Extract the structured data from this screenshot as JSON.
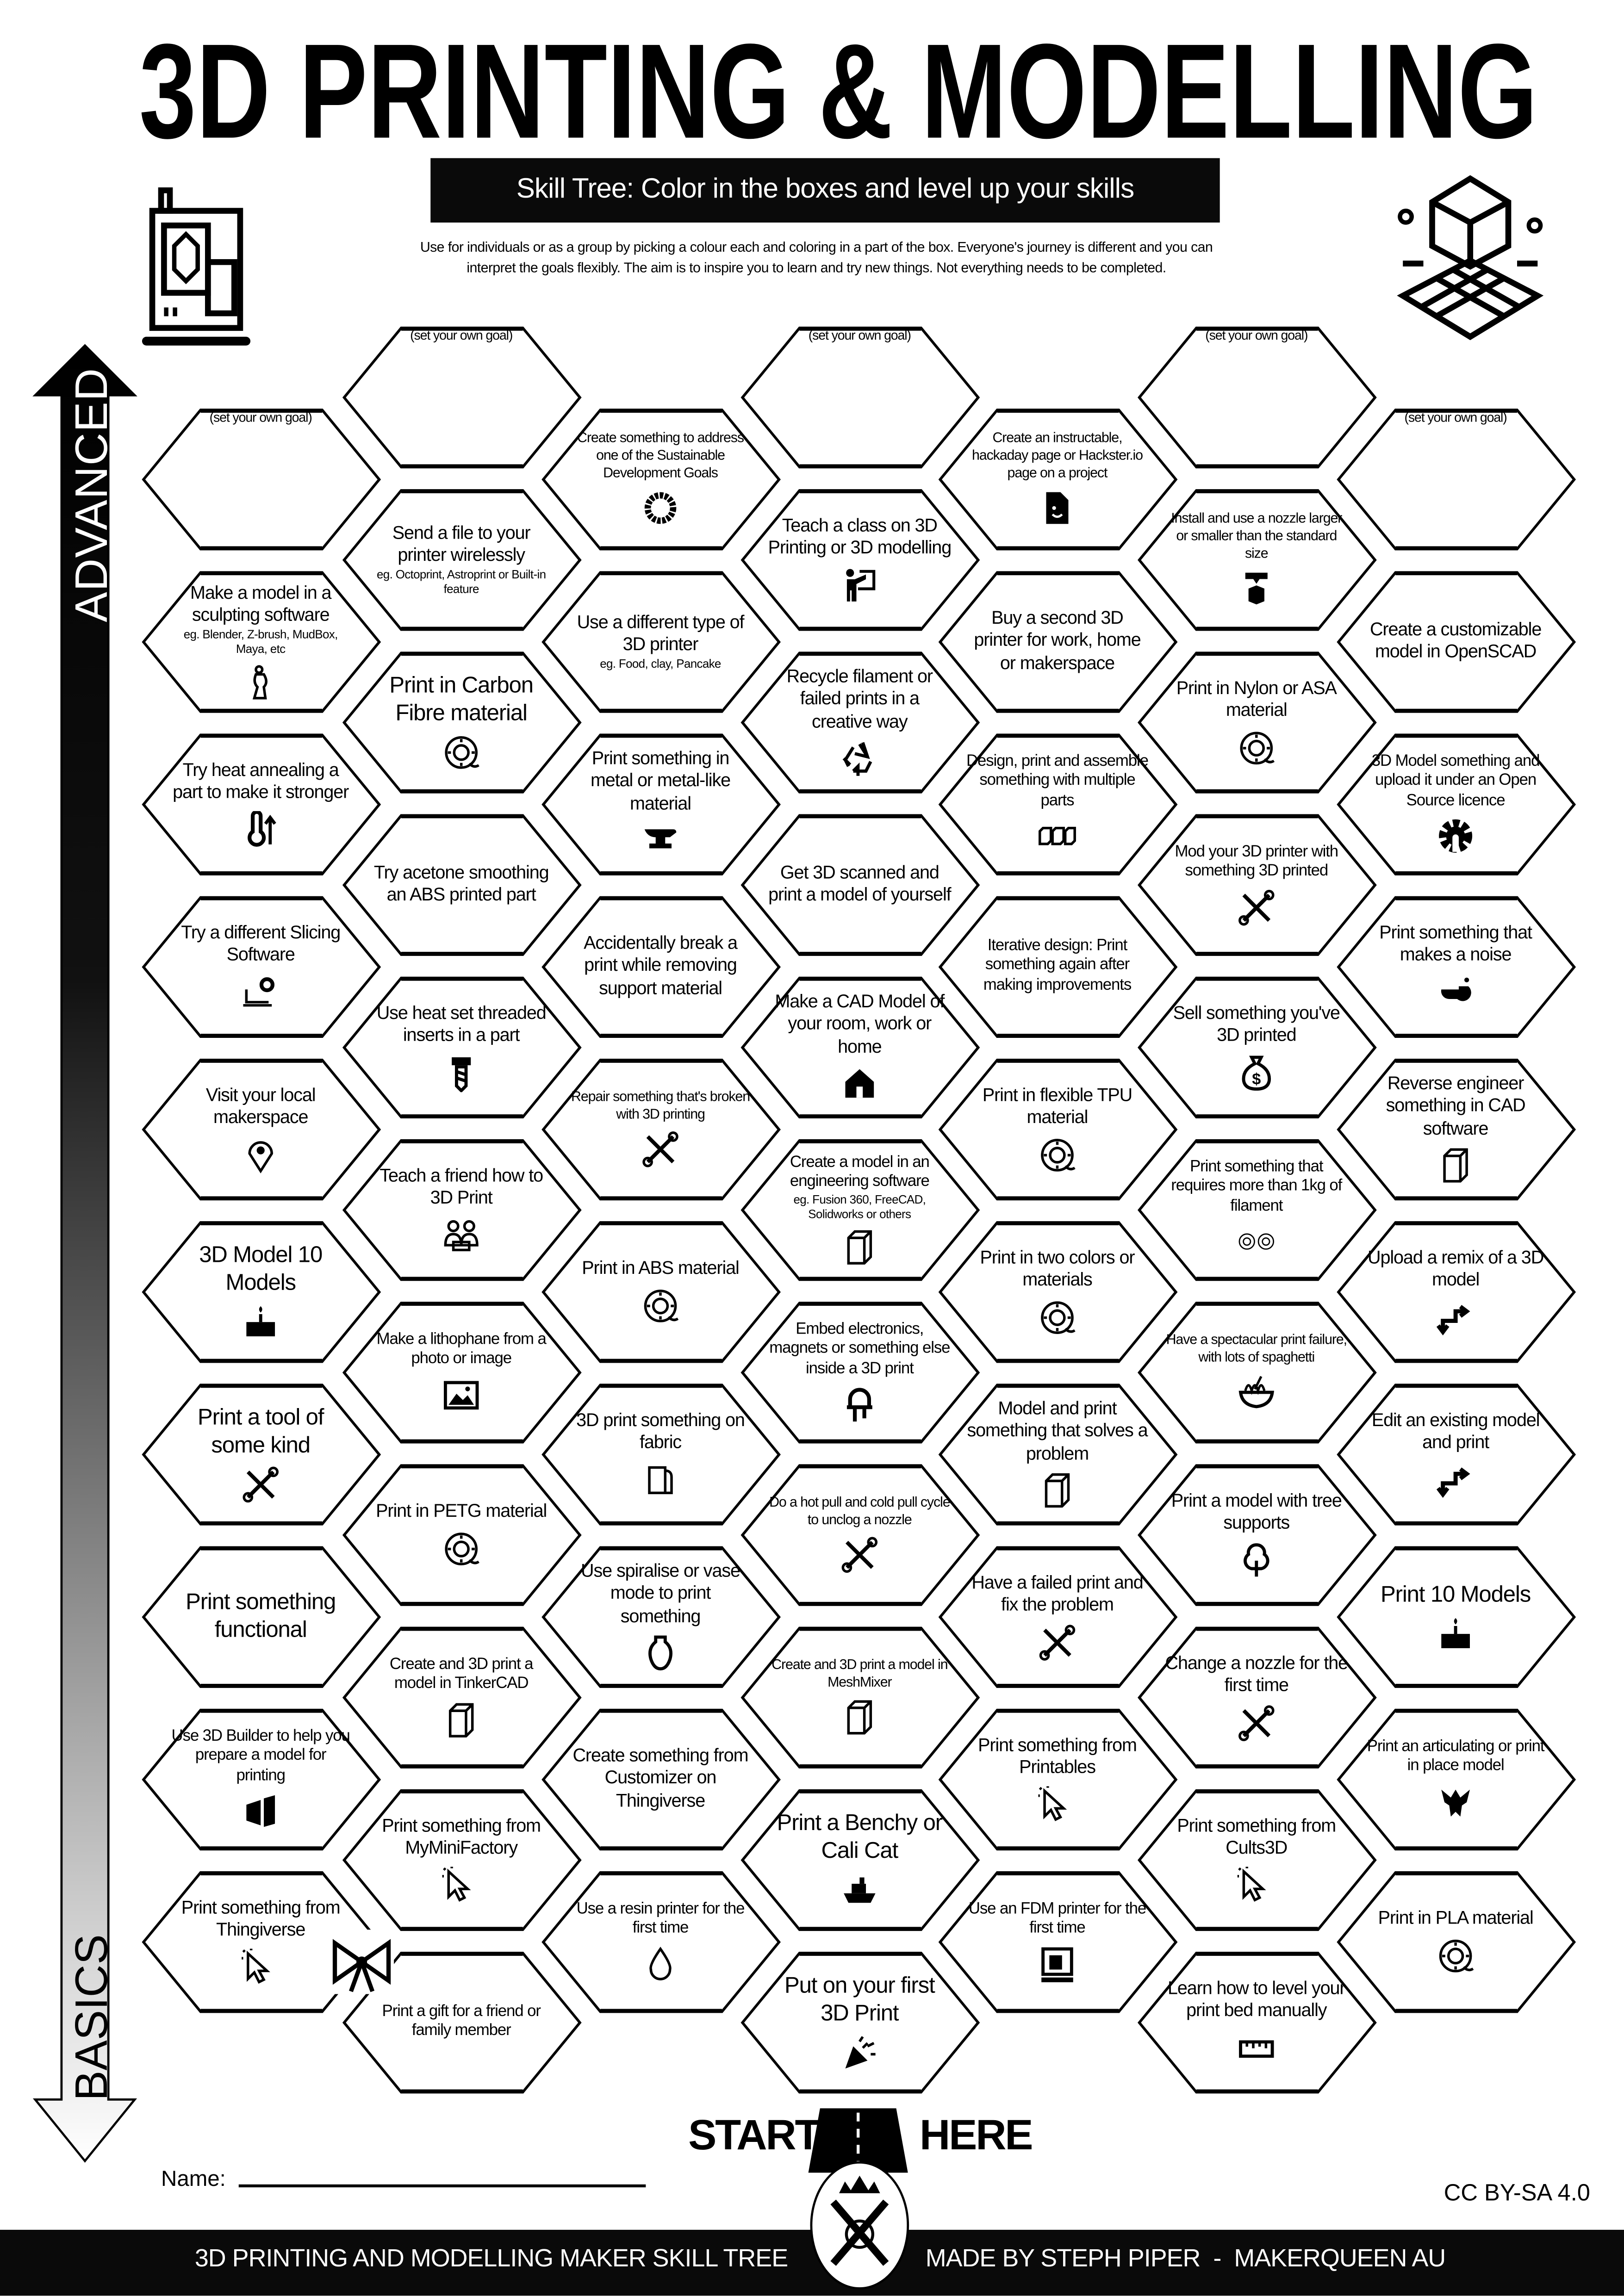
{
  "header": {
    "title": "3D PRINTING & MODELLING",
    "subtitle": "Skill Tree:  Color in the boxes and level up your skills",
    "description": [
      "Use for individuals or as a group by picking a colour each and coloring in a part of the box.  Everyone's journey is different and you can",
      "interpret the goals flexibly.  The aim is to inspire you to learn and try new things. Not everything needs to be completed."
    ]
  },
  "sidebar": {
    "advanced_label": "ADVANCED",
    "basics_label": "BASICS"
  },
  "columns": [
    [
      {
        "text": "(set your own goal)",
        "goal": true
      },
      {
        "text": "Make a model in a sculpting software",
        "sub": "eg. Blender, Z-brush, MudBox, Maya, etc",
        "icon": "statue"
      },
      {
        "text": "Try heat annealing a part to make it stronger",
        "icon": "thermometer-up"
      },
      {
        "text": "Try a different Slicing Software",
        "icon": "laptop-gear"
      },
      {
        "text": "Visit your local makerspace",
        "icon": "location-pin"
      },
      {
        "text": "3D Model 10 Models",
        "icon": "cake"
      },
      {
        "text": "Print a tool of some kind",
        "icon": "tools"
      },
      {
        "text": "Print something functional"
      },
      {
        "text": "Use 3D Builder to help you prepare a model for printing",
        "icon": "3d-builder"
      },
      {
        "text": "Print something from Thingiverse",
        "icon": "cursor"
      }
    ],
    [
      {
        "text": "(set your own goal)",
        "goal": true
      },
      {
        "text": "Send a file to your printer wirelessly",
        "sub": "eg. Octoprint, Astroprint or Built-in feature"
      },
      {
        "text": "Print in Carbon Fibre material",
        "icon": "spool"
      },
      {
        "text": "Try acetone smoothing an ABS printed part"
      },
      {
        "text": "Use heat set threaded inserts in a part",
        "icon": "screw"
      },
      {
        "text": "Teach a friend how to 3D Print",
        "icon": "people-laptop"
      },
      {
        "text": "Make a lithophane from a photo or image",
        "icon": "picture"
      },
      {
        "text": "Print in PETG material",
        "icon": "spool"
      },
      {
        "text": "Create and 3D print a model in TinkerCAD",
        "icon": "cube"
      },
      {
        "text": "Print something from MyMiniFactory",
        "icon": "cursor"
      },
      {
        "text": "Print a gift for a friend or family member",
        "icon": "gift-bow"
      }
    ],
    [
      {
        "text": "Create something to address one of the Sustainable Development Goals",
        "icon": "sdg-wheel"
      },
      {
        "text": "Use a different type of 3D printer",
        "sub": "eg. Food, clay, Pancake"
      },
      {
        "text": "Print something in metal or metal-like material",
        "icon": "anvil"
      },
      {
        "text": "Accidentally break a print while removing support material"
      },
      {
        "text": "Repair something that's broken with 3D printing",
        "icon": "tools"
      },
      {
        "text": "Print in ABS material",
        "icon": "spool"
      },
      {
        "text": "3D print something on fabric",
        "icon": "fabric"
      },
      {
        "text": "Use spiralise or vase mode to print something",
        "icon": "vase"
      },
      {
        "text": "Create something from Customizer on Thingiverse"
      },
      {
        "text": "Use a resin printer for the first time",
        "icon": "drop"
      }
    ],
    [
      {
        "text": "(set your own goal)",
        "goal": true
      },
      {
        "text": "Teach a class on 3D Printing or 3D modelling",
        "icon": "teacher"
      },
      {
        "text": "Recycle filament or failed prints in a creative way",
        "icon": "recycle"
      },
      {
        "text": "Get 3D scanned and print a model of yourself"
      },
      {
        "text": "Make a CAD Model of your room, work or home",
        "icon": "house"
      },
      {
        "text": "Create a model in an engineering software",
        "sub": "eg. Fusion 360, FreeCAD, Solidworks or others",
        "icon": "cube"
      },
      {
        "text": "Embed electronics, magnets or something else inside a 3D print",
        "icon": "led"
      },
      {
        "text": "Do a hot pull and cold pull cycle to unclog a nozzle",
        "icon": "tools"
      },
      {
        "text": "Create and 3D print a model in MeshMixer",
        "icon": "cube"
      },
      {
        "text": "Print a Benchy or Cali Cat",
        "icon": "boat"
      },
      {
        "text": "Put on your first 3D Print",
        "icon": "party-popper"
      }
    ],
    [
      {
        "text": "Create an instructable, hackaday page or Hackster.io page on a project",
        "icon": "document"
      },
      {
        "text": "Buy a second 3D printer for work, home or makerspace"
      },
      {
        "text": "Design, print and assemble something with multiple parts",
        "icon": "three-cubes"
      },
      {
        "text": "Iterative design: Print something again after making improvements"
      },
      {
        "text": "Print in flexible TPU material",
        "icon": "spool"
      },
      {
        "text": "Print in two colors or materials",
        "icon": "spool"
      },
      {
        "text": "Model and print something that solves a problem",
        "icon": "cube"
      },
      {
        "text": "Have a failed print and fix the problem",
        "icon": "tools"
      },
      {
        "text": "Print something from Printables",
        "icon": "cursor"
      },
      {
        "text": "Use an FDM printer for the first time",
        "icon": "printer"
      }
    ],
    [
      {
        "text": "(set your own goal)",
        "goal": true
      },
      {
        "text": "Install and use a nozzle larger or smaller than the standard size",
        "icon": "nozzle"
      },
      {
        "text": "Print in Nylon or ASA material",
        "icon": "spool"
      },
      {
        "text": "Mod your 3D printer with something 3D printed",
        "icon": "tools"
      },
      {
        "text": "Sell something you've 3D printed",
        "icon": "money-bag"
      },
      {
        "text": "Print something that requires more than 1kg of filament",
        "icon": "spools"
      },
      {
        "text": "Have a spectacular print failure, with lots of spaghetti",
        "icon": "spaghetti"
      },
      {
        "text": "Print a model with tree supports",
        "icon": "tree"
      },
      {
        "text": "Change a nozzle for the first time",
        "icon": "tools"
      },
      {
        "text": "Print something from Cults3D",
        "icon": "cursor"
      },
      {
        "text": "Learn how to level your print bed manually",
        "icon": "ruler"
      }
    ],
    [
      {
        "text": "(set your own goal)",
        "goal": true
      },
      {
        "text": "Create a customizable model in OpenSCAD"
      },
      {
        "text": "3D Model something and upload it under an Open Source licence",
        "icon": "open-source-gear"
      },
      {
        "text": "Print something that makes a noise",
        "icon": "whistle"
      },
      {
        "text": "Reverse engineer something in CAD software",
        "icon": "cube"
      },
      {
        "text": "Upload a remix of a 3D model",
        "icon": "remix-arrows"
      },
      {
        "text": "Edit an existing model and print",
        "icon": "remix-arrows"
      },
      {
        "text": "Print 10 Models",
        "icon": "cake"
      },
      {
        "text": "Print an articulating or print in place model",
        "icon": "dragon"
      },
      {
        "text": "Print in PLA material",
        "icon": "spool"
      }
    ]
  ],
  "footer": {
    "start": "START",
    "here": "HERE",
    "name_label": "Name:",
    "license": "CC BY-SA 4.0",
    "left": "3D PRINTING AND MODELLING MAKER SKILL TREE",
    "right": "MADE BY STEPH PIPER  -  MAKERQUEEN AU"
  }
}
